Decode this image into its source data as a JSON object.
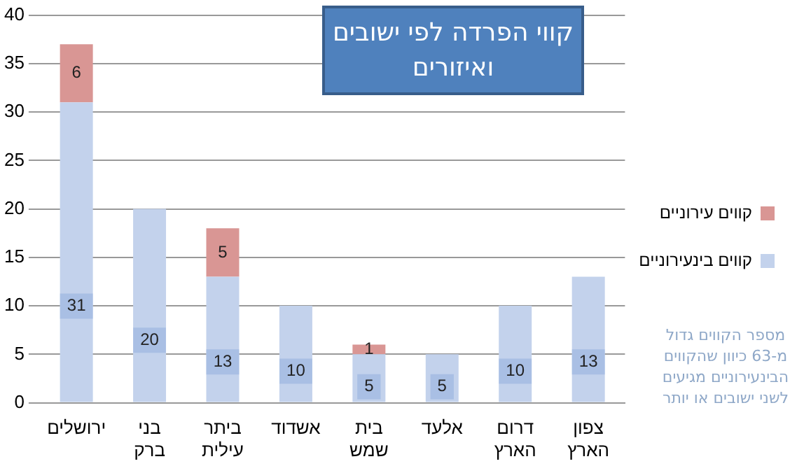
{
  "chart_data": {
    "type": "bar",
    "title": "קווי הפרדה לפי ישובים ואיזורים",
    "categories": [
      "ירושלים",
      "בני ברק",
      "ביתר עילית",
      "אשדוד",
      "בית שמש",
      "אלעד",
      "דרום הארץ",
      "צפון הארץ"
    ],
    "stacked": true,
    "series": [
      {
        "name": "קווים בינעירוניים",
        "color": "#c3d2ec",
        "values": [
          31,
          20,
          13,
          10,
          5,
          5,
          10,
          13
        ],
        "value_labels": [
          "31",
          "20",
          "13",
          "10",
          "5",
          "5",
          "10",
          "13"
        ]
      },
      {
        "name": "קווים עירוניים",
        "color": "#d99694",
        "values": [
          6,
          null,
          5,
          null,
          1,
          null,
          null,
          null
        ],
        "value_labels": [
          "6",
          null,
          "5",
          null,
          "1",
          null,
          null,
          null
        ]
      }
    ],
    "ylim": [
      0,
      40
    ],
    "yticks": [
      0,
      5,
      10,
      15,
      20,
      25,
      30,
      35,
      40
    ],
    "grid": "y",
    "legend": "right",
    "annotations": [
      "מספר הקווים גדול מ-63 כיוון שהקווים הבינעירוניים מגיעים לשני ישובים או יותר"
    ]
  }
}
